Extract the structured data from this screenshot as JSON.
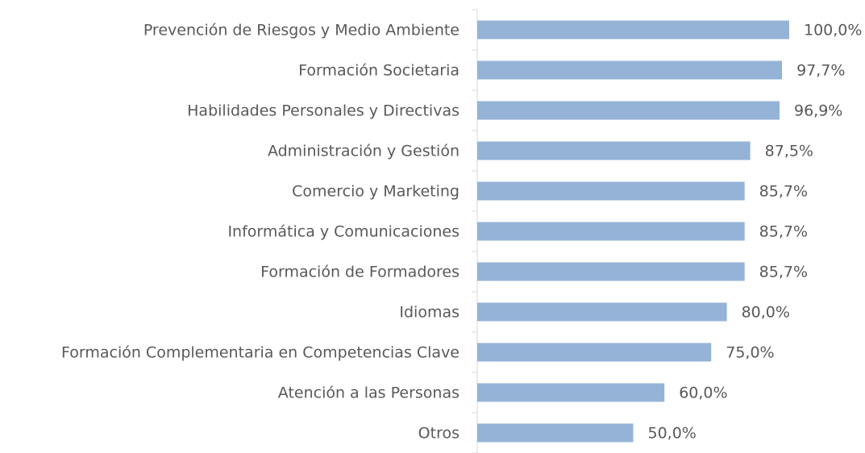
{
  "chart_data": {
    "type": "barh",
    "categories": [
      "Prevención de Riesgos y Medio Ambiente",
      "Formación Societaria",
      "Habilidades Personales y Directivas",
      "Administración y Gestión",
      "Comercio y Marketing",
      "Informática y Comunicaciones",
      "Formación de Formadores",
      "Idiomas",
      "Formación Complementaria en Competencias Clave",
      "Atención a las Personas",
      "Otros"
    ],
    "values": [
      100,
      97.7,
      96.9,
      87.5,
      85.7,
      85.7,
      85.7,
      80,
      75,
      60,
      50
    ],
    "value_labels": [
      "100,0%",
      "97,7%",
      "96,9%",
      "87,5%",
      "85,7%",
      "85,7%",
      "85,7%",
      "80,0%",
      "75,0%",
      "60,0%",
      "50,0%"
    ],
    "color": "#95b3d7",
    "xlim": [
      0,
      100
    ]
  }
}
